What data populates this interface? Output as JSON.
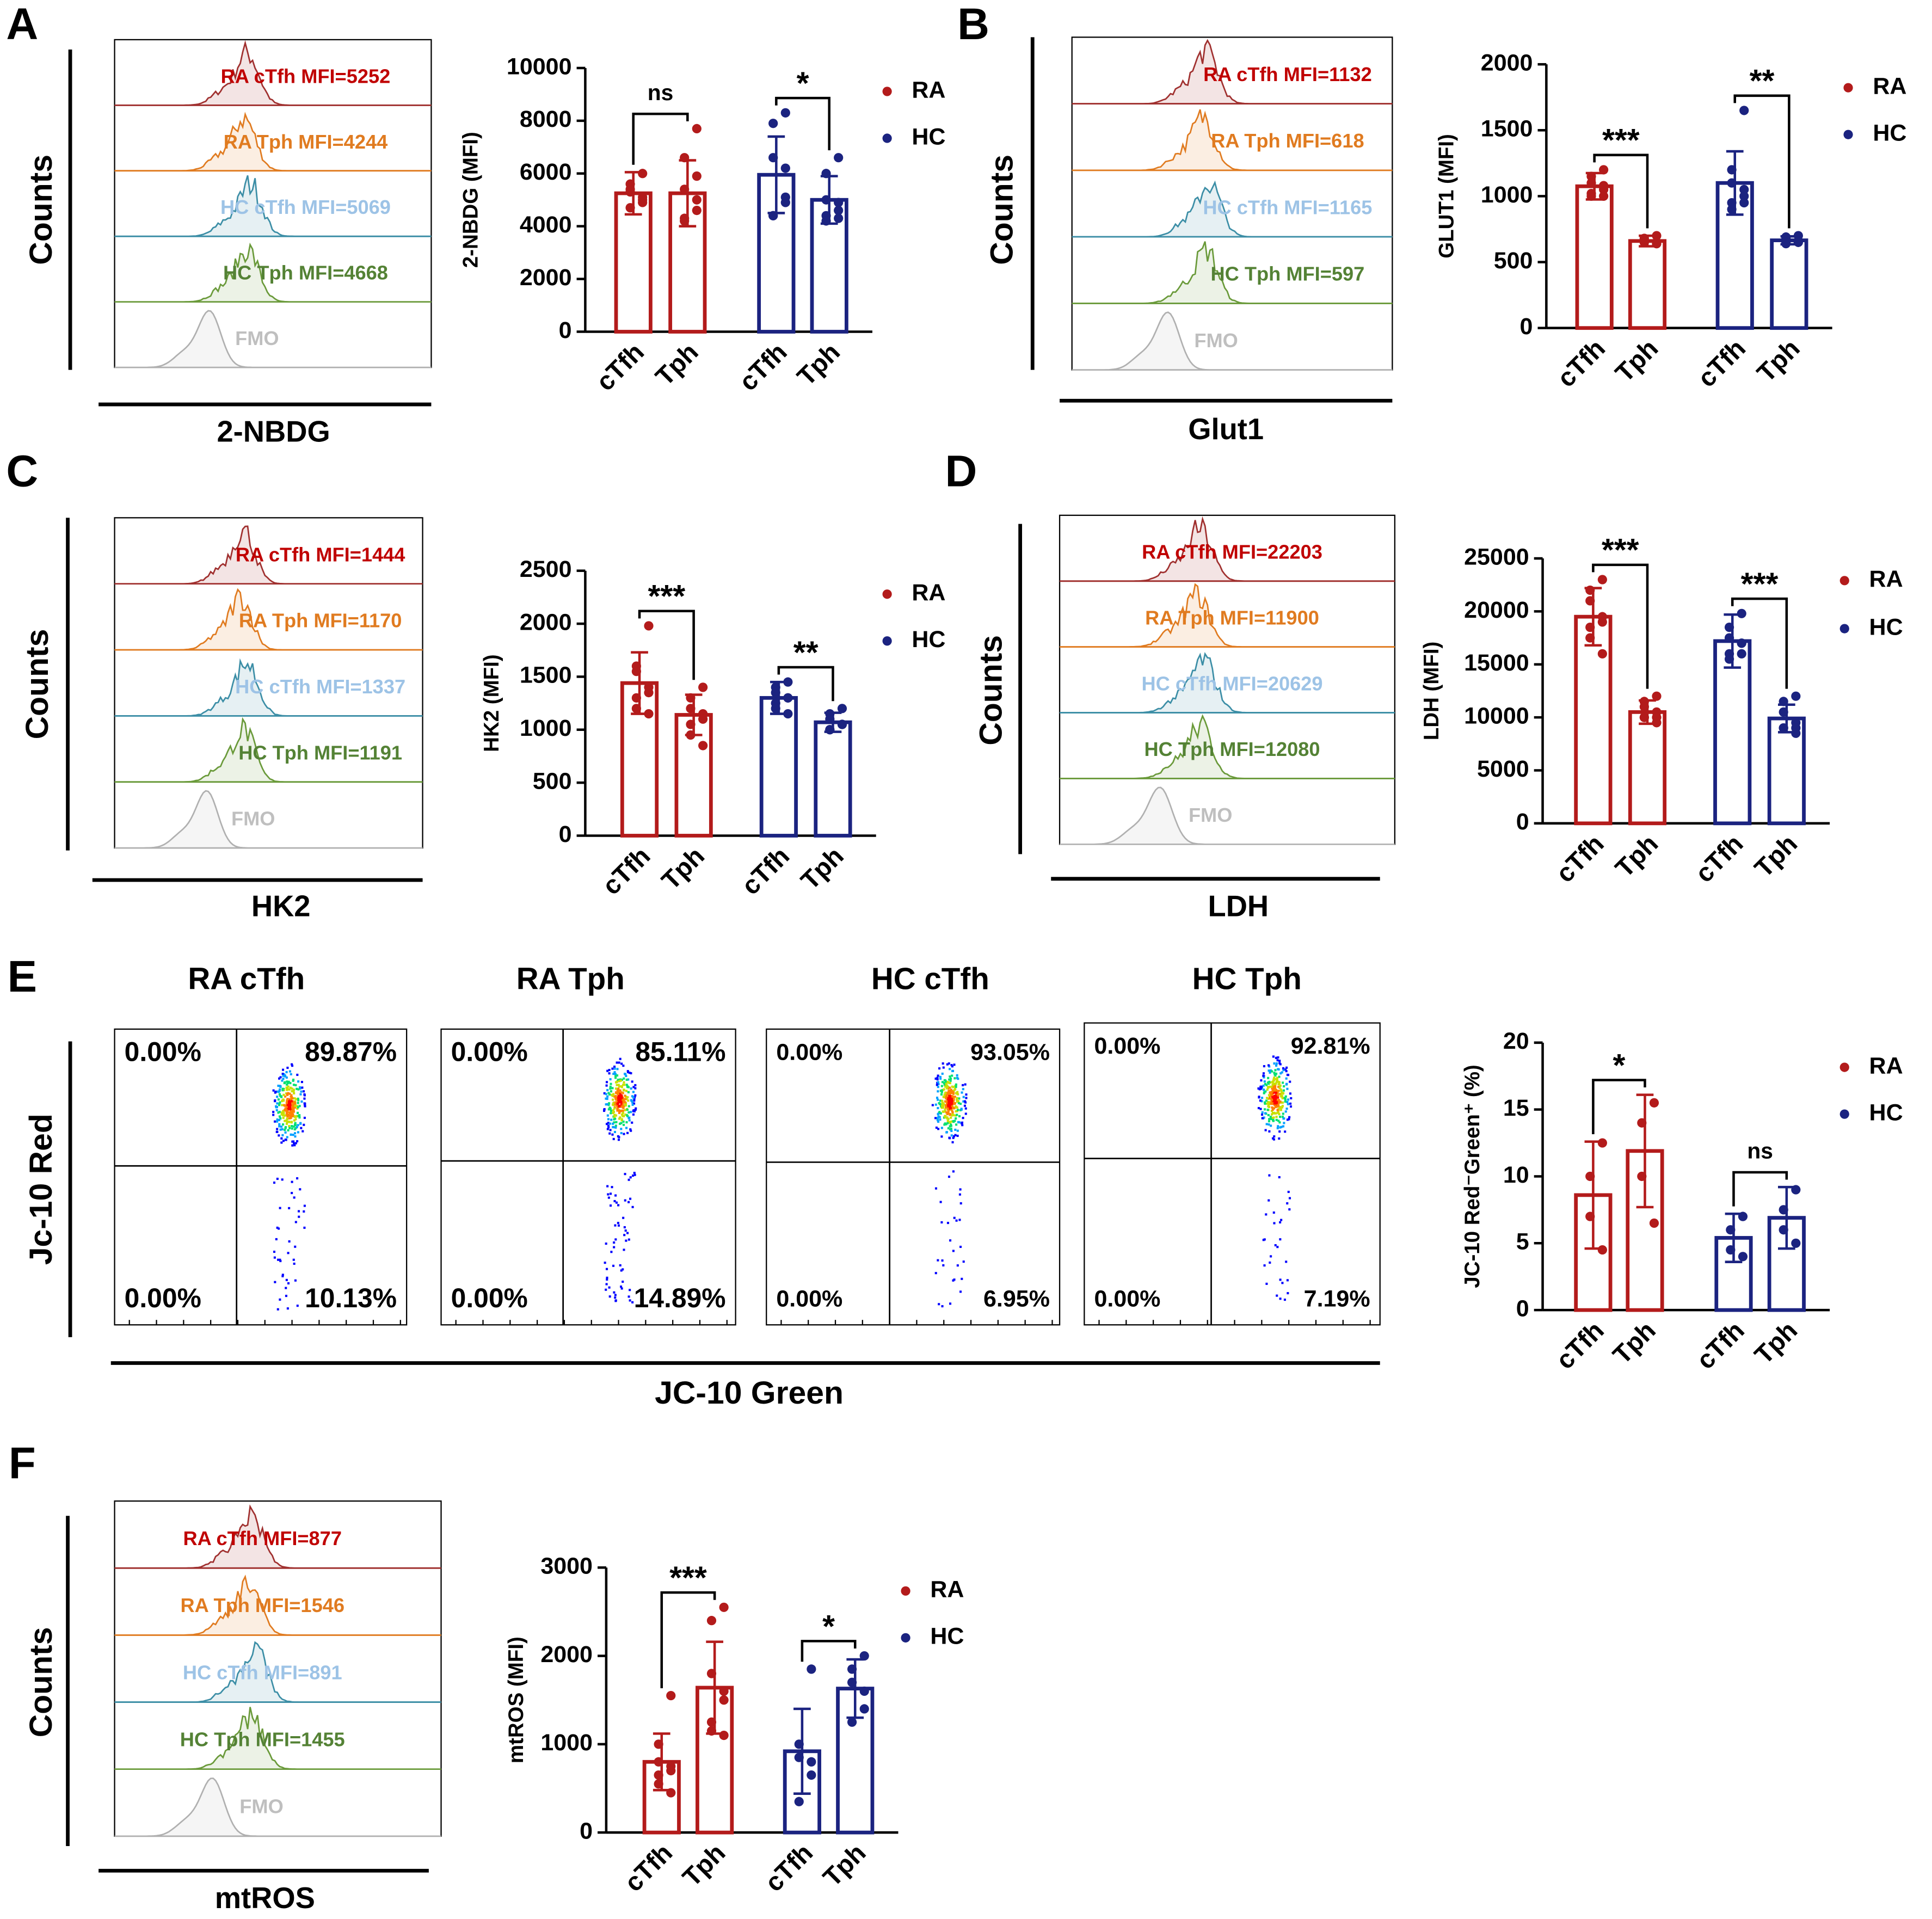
{
  "chart_data": [
    {
      "type": "overlay",
      "panel": "A",
      "ylabel": "Counts",
      "xlabel": "2-NBDG",
      "labels": [
        "RA cTfh MFI=5252",
        "RA Tph MFI=4244",
        "HC cTfh MFI=5069",
        "HC Tph MFI=4668",
        "FMO"
      ],
      "colors": [
        "#c00000",
        "#e07b20",
        "#9dc3e6",
        "#548235",
        "#bfbfbf"
      ]
    },
    {
      "type": "bar",
      "ylabel": "2-NBDG (MFI)",
      "ylim": [
        0,
        10000
      ],
      "yticks": [
        0,
        2000,
        4000,
        6000,
        8000,
        10000
      ],
      "series": [
        {
          "name": "RA",
          "color": "#b31b1b",
          "categories": [
            "cTfh",
            "Tph"
          ],
          "values": [
            5250,
            5250
          ],
          "errors": [
            800,
            1250
          ],
          "points": [
            [
              6000,
              5600,
              5300,
              5100,
              4900,
              4700,
              5400,
              5000
            ],
            [
              7700,
              6600,
              5400,
              5000,
              4600,
              4300,
              4200,
              5900
            ]
          ],
          "significance": "ns"
        },
        {
          "name": "HC",
          "color": "#1b2380",
          "categories": [
            "cTfh",
            "Tph"
          ],
          "values": [
            5950,
            5000
          ],
          "errors": [
            1450,
            900
          ],
          "points": [
            [
              8300,
              7900,
              6600,
              6200,
              5100,
              4400,
              4400,
              4900
            ],
            [
              6600,
              6000,
              5000,
              4900,
              4600,
              4400,
              4200,
              4300
            ]
          ],
          "significance": "*"
        }
      ]
    },
    {
      "type": "overlay",
      "panel": "B",
      "ylabel": "Counts",
      "xlabel": "Glut1",
      "labels": [
        "RA cTfh MFI=1132",
        "RA Tph MFI=618",
        "HC cTfh MFI=1165",
        "HC Tph MFI=597",
        "FMO"
      ],
      "colors": [
        "#c00000",
        "#e07b20",
        "#9dc3e6",
        "#548235",
        "#bfbfbf"
      ]
    },
    {
      "type": "bar",
      "ylabel": "GLUT1 (MFI)",
      "ylim": [
        0,
        2000
      ],
      "yticks": [
        0,
        500,
        1000,
        1500,
        2000
      ],
      "series": [
        {
          "name": "RA",
          "color": "#b31b1b",
          "categories": [
            "cTfh",
            "Tph"
          ],
          "values": [
            1075,
            660
          ],
          "errors": [
            100,
            40
          ],
          "points": [
            [
              1200,
              1150,
              1100,
              1080,
              1050,
              1000,
              1020,
              1000
            ],
            [
              700,
              680,
              660,
              650,
              640,
              650,
              660,
              640
            ]
          ],
          "significance": "***"
        },
        {
          "name": "HC",
          "color": "#1b2380",
          "categories": [
            "cTfh",
            "Tph"
          ],
          "values": [
            1100,
            665
          ],
          "errors": [
            240,
            30
          ],
          "points": [
            [
              1650,
              1200,
              1100,
              1050,
              1000,
              950,
              900,
              950
            ],
            [
              700,
              690,
              680,
              660,
              650,
              650,
              640,
              650
            ]
          ],
          "significance": "**"
        }
      ]
    },
    {
      "type": "overlay",
      "panel": "C",
      "ylabel": "Counts",
      "xlabel": "HK2",
      "labels": [
        "RA cTfh MFI=1444",
        "RA Tph MFI=1170",
        "HC cTfh MFI=1337",
        "HC Tph MFI=1191",
        "FMO"
      ],
      "colors": [
        "#c00000",
        "#e07b20",
        "#9dc3e6",
        "#548235",
        "#bfbfbf"
      ]
    },
    {
      "type": "bar",
      "ylabel": "HK2 (MFI)",
      "ylim": [
        0,
        2500
      ],
      "yticks": [
        0,
        500,
        1000,
        1500,
        2000,
        2500
      ],
      "series": [
        {
          "name": "RA",
          "color": "#b31b1b",
          "categories": [
            "cTfh",
            "Tph"
          ],
          "values": [
            1440,
            1140
          ],
          "errors": [
            290,
            190
          ],
          "points": [
            [
              1980,
              1600,
              1550,
              1400,
              1350,
              1300,
              1200,
              1150
            ],
            [
              1400,
              1300,
              1200,
              1150,
              1100,
              1050,
              950,
              850
            ]
          ],
          "significance": "***"
        },
        {
          "name": "HC",
          "color": "#1b2380",
          "categories": [
            "cTfh",
            "Tph"
          ],
          "values": [
            1300,
            1070
          ],
          "errors": [
            150,
            90
          ],
          "points": [
            [
              1450,
              1400,
              1350,
              1300,
              1300,
              1250,
              1200,
              1150
            ],
            [
              1200,
              1150,
              1100,
              1050,
              1050,
              1000,
              1000,
              1050
            ]
          ],
          "significance": "**"
        }
      ]
    },
    {
      "type": "overlay",
      "panel": "D",
      "ylabel": "Counts",
      "xlabel": "LDH",
      "labels": [
        "RA cTfh MFI=22203",
        "RA Tph MFI=11900",
        "HC cTfh MFI=20629",
        "HC Tph MFI=12080",
        "FMO"
      ],
      "colors": [
        "#c00000",
        "#e07b20",
        "#9dc3e6",
        "#548235",
        "#bfbfbf"
      ]
    },
    {
      "type": "bar",
      "ylabel": "LDH (MFI)",
      "ylim": [
        0,
        25000
      ],
      "yticks": [
        0,
        5000,
        10000,
        15000,
        20000,
        25000
      ],
      "series": [
        {
          "name": "RA",
          "color": "#b31b1b",
          "categories": [
            "cTfh",
            "Tph"
          ],
          "values": [
            19500,
            10500
          ],
          "errors": [
            2700,
            1100
          ],
          "points": [
            [
              23000,
              22000,
              21000,
              19500,
              19000,
              18500,
              17500,
              16000
            ],
            [
              12000,
              11500,
              11000,
              10500,
              10000,
              10000,
              10000,
              9500
            ]
          ],
          "significance": "***"
        },
        {
          "name": "HC",
          "color": "#1b2380",
          "categories": [
            "cTfh",
            "Tph"
          ],
          "values": [
            17200,
            9900
          ],
          "errors": [
            2500,
            1300
          ],
          "points": [
            [
              19800,
              18500,
              17500,
              17000,
              17000,
              16000,
              15500,
              16000
            ],
            [
              12000,
              11500,
              10500,
              9500,
              9000,
              9000,
              9000,
              8500
            ]
          ],
          "significance": "***"
        }
      ]
    },
    {
      "type": "dotplot",
      "panel": "E",
      "ylabel": "Jc-10 Red",
      "xlabel": "JC-10 Green",
      "plots": [
        {
          "title": "RA cTfh",
          "quadrants": [
            0,
            89.87,
            0,
            10.13
          ],
          "quadrant_labels": [
            "0.00%",
            "89.87%",
            "0.00%",
            "10.13%"
          ]
        },
        {
          "title": "RA Tph",
          "quadrants": [
            0,
            85.11,
            0,
            14.89
          ],
          "quadrant_labels": [
            "0.00%",
            "85.11%",
            "0.00%",
            "14.89%"
          ]
        },
        {
          "title": "HC cTfh",
          "quadrants": [
            0,
            93.05,
            0,
            6.95
          ],
          "quadrant_labels": [
            "0.00%",
            "93.05%",
            "0.00%",
            "6.95%"
          ]
        },
        {
          "title": "HC Tph",
          "quadrants": [
            0,
            92.81,
            0,
            7.19
          ],
          "quadrant_labels": [
            "0.00%",
            "92.81%",
            "0.00%",
            "7.19%"
          ]
        }
      ]
    },
    {
      "type": "bar",
      "ylabel": "JC-10 Red⁻Green⁺ (%)",
      "ylim": [
        0,
        20
      ],
      "yticks": [
        0,
        5,
        10,
        15,
        20
      ],
      "series": [
        {
          "name": "RA",
          "color": "#b31b1b",
          "categories": [
            "cTfh",
            "Tph"
          ],
          "values": [
            8.6,
            11.9
          ],
          "errors": [
            4.0,
            4.2
          ],
          "points": [
            [
              12.5,
              10,
              7,
              4.5
            ],
            [
              15.5,
              14,
              10,
              6.5
            ]
          ],
          "significance": "*"
        },
        {
          "name": "HC",
          "color": "#1b2380",
          "categories": [
            "cTfh",
            "Tph"
          ],
          "values": [
            5.4,
            6.9
          ],
          "errors": [
            1.8,
            2.3
          ],
          "points": [
            [
              7,
              6,
              4.5,
              4
            ],
            [
              9,
              7.5,
              6,
              5
            ]
          ],
          "significance": "ns"
        }
      ]
    },
    {
      "type": "overlay",
      "panel": "F",
      "ylabel": "Counts",
      "xlabel": "mtROS",
      "labels": [
        "RA cTfh MFI=877",
        "RA Tph MFI=1546",
        "HC cTfh MFI=891",
        "HC Tph MFI=1455",
        "FMO"
      ],
      "colors": [
        "#c00000",
        "#e07b20",
        "#9dc3e6",
        "#548235",
        "#bfbfbf"
      ]
    },
    {
      "type": "bar",
      "ylabel": "mtROS (MFI)",
      "ylim": [
        0,
        3000
      ],
      "yticks": [
        0,
        1000,
        2000,
        3000
      ],
      "series": [
        {
          "name": "RA",
          "color": "#b31b1b",
          "categories": [
            "cTfh",
            "Tph"
          ],
          "values": [
            800,
            1640
          ],
          "errors": [
            320,
            520
          ],
          "points": [
            [
              1550,
              1000,
              800,
              750,
              700,
              650,
              550,
              450
            ],
            [
              2550,
              2400,
              1800,
              1600,
              1500,
              1250,
              1150,
              1100
            ]
          ],
          "significance": "***"
        },
        {
          "name": "HC",
          "color": "#1b2380",
          "categories": [
            "cTfh",
            "Tph"
          ],
          "values": [
            920,
            1630
          ],
          "errors": [
            480,
            330
          ],
          "points": [
            [
              1850,
              1000,
              850,
              800,
              650,
              350
            ],
            [
              2000,
              1850,
              1700,
              1600,
              1400,
              1250
            ]
          ],
          "significance": "*"
        }
      ]
    }
  ]
}
